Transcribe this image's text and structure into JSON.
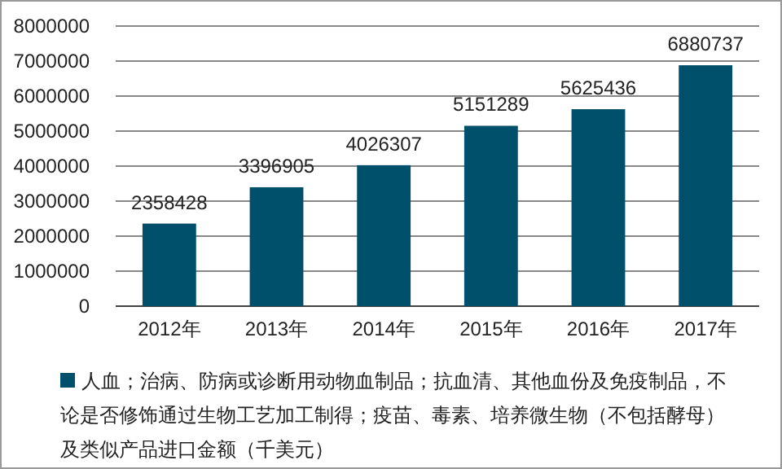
{
  "chart_data": {
    "type": "bar",
    "categories": [
      "2012年",
      "2013年",
      "2014年",
      "2015年",
      "2016年",
      "2017年"
    ],
    "series": [
      {
        "name": "人血；治病、防病或诊断用动物血制品；抗血清、其他血份及免疫制品，不论是否修饰通过生物工艺加工制得；疫苗、毒素、培养微生物（不包括酵母）及类似产品进口金额（千美元）",
        "color": "#00506b",
        "values": [
          2358428,
          3396905,
          4026307,
          5151289,
          5625436,
          6880737
        ]
      }
    ],
    "ylim": [
      0,
      8000000
    ],
    "yticks": [
      0,
      1000000,
      2000000,
      3000000,
      4000000,
      5000000,
      6000000,
      7000000,
      8000000
    ],
    "grid": "y",
    "legend": "bottom",
    "data_labels": true
  }
}
